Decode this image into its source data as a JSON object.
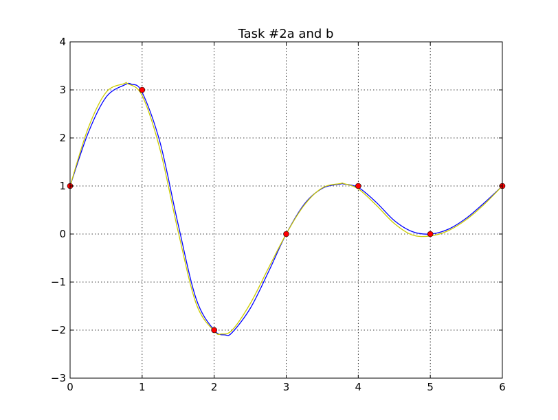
{
  "chart_data": {
    "type": "line",
    "title": "Task #2a and b",
    "xlabel": "",
    "ylabel": "",
    "xlim": [
      0,
      6
    ],
    "ylim": [
      -3,
      4
    ],
    "grid": true,
    "x_ticks": [
      "0",
      "1",
      "2",
      "3",
      "4",
      "5",
      "6"
    ],
    "y_ticks": [
      "−3",
      "−2",
      "−1",
      "0",
      "1",
      "2",
      "3",
      "4"
    ],
    "points": {
      "x": [
        0,
        1,
        2,
        3,
        4,
        5,
        6
      ],
      "y": [
        1,
        3,
        -2,
        0,
        1,
        0,
        1
      ],
      "color": "#ff0000"
    },
    "series": [
      {
        "color": "#0000ff",
        "x": [
          0,
          0.25,
          0.5,
          0.75,
          0.85,
          1,
          1.25,
          1.5,
          1.75,
          2,
          2.15,
          2.25,
          2.5,
          2.75,
          3,
          3.25,
          3.5,
          3.75,
          3.8,
          4,
          4.25,
          4.5,
          4.75,
          5,
          5.25,
          5.5,
          5.75,
          6
        ],
        "y": [
          1,
          2.1,
          2.85,
          3.1,
          3.12,
          2.95,
          1.9,
          0.2,
          -1.35,
          -2.0,
          -2.1,
          -2.05,
          -1.55,
          -0.8,
          0,
          0.62,
          0.95,
          1.04,
          1.04,
          0.97,
          0.66,
          0.28,
          0.05,
          0,
          0.1,
          0.33,
          0.65,
          1
        ]
      },
      {
        "color": "#cccc00",
        "x": [
          0,
          0.25,
          0.5,
          0.75,
          0.8,
          1,
          1.25,
          1.5,
          1.75,
          2,
          2.1,
          2.25,
          2.5,
          2.75,
          3,
          3.25,
          3.5,
          3.75,
          3.8,
          4,
          4.25,
          4.5,
          4.75,
          5,
          5.25,
          5.5,
          5.75,
          6
        ],
        "y": [
          1,
          2.2,
          2.95,
          3.13,
          3.13,
          2.88,
          1.75,
          0.05,
          -1.45,
          -2.02,
          -2.08,
          -2.0,
          -1.45,
          -0.72,
          0,
          0.6,
          0.96,
          1.05,
          1.05,
          0.94,
          0.6,
          0.22,
          -0.02,
          -0.04,
          0.07,
          0.3,
          0.62,
          1
        ]
      }
    ]
  }
}
